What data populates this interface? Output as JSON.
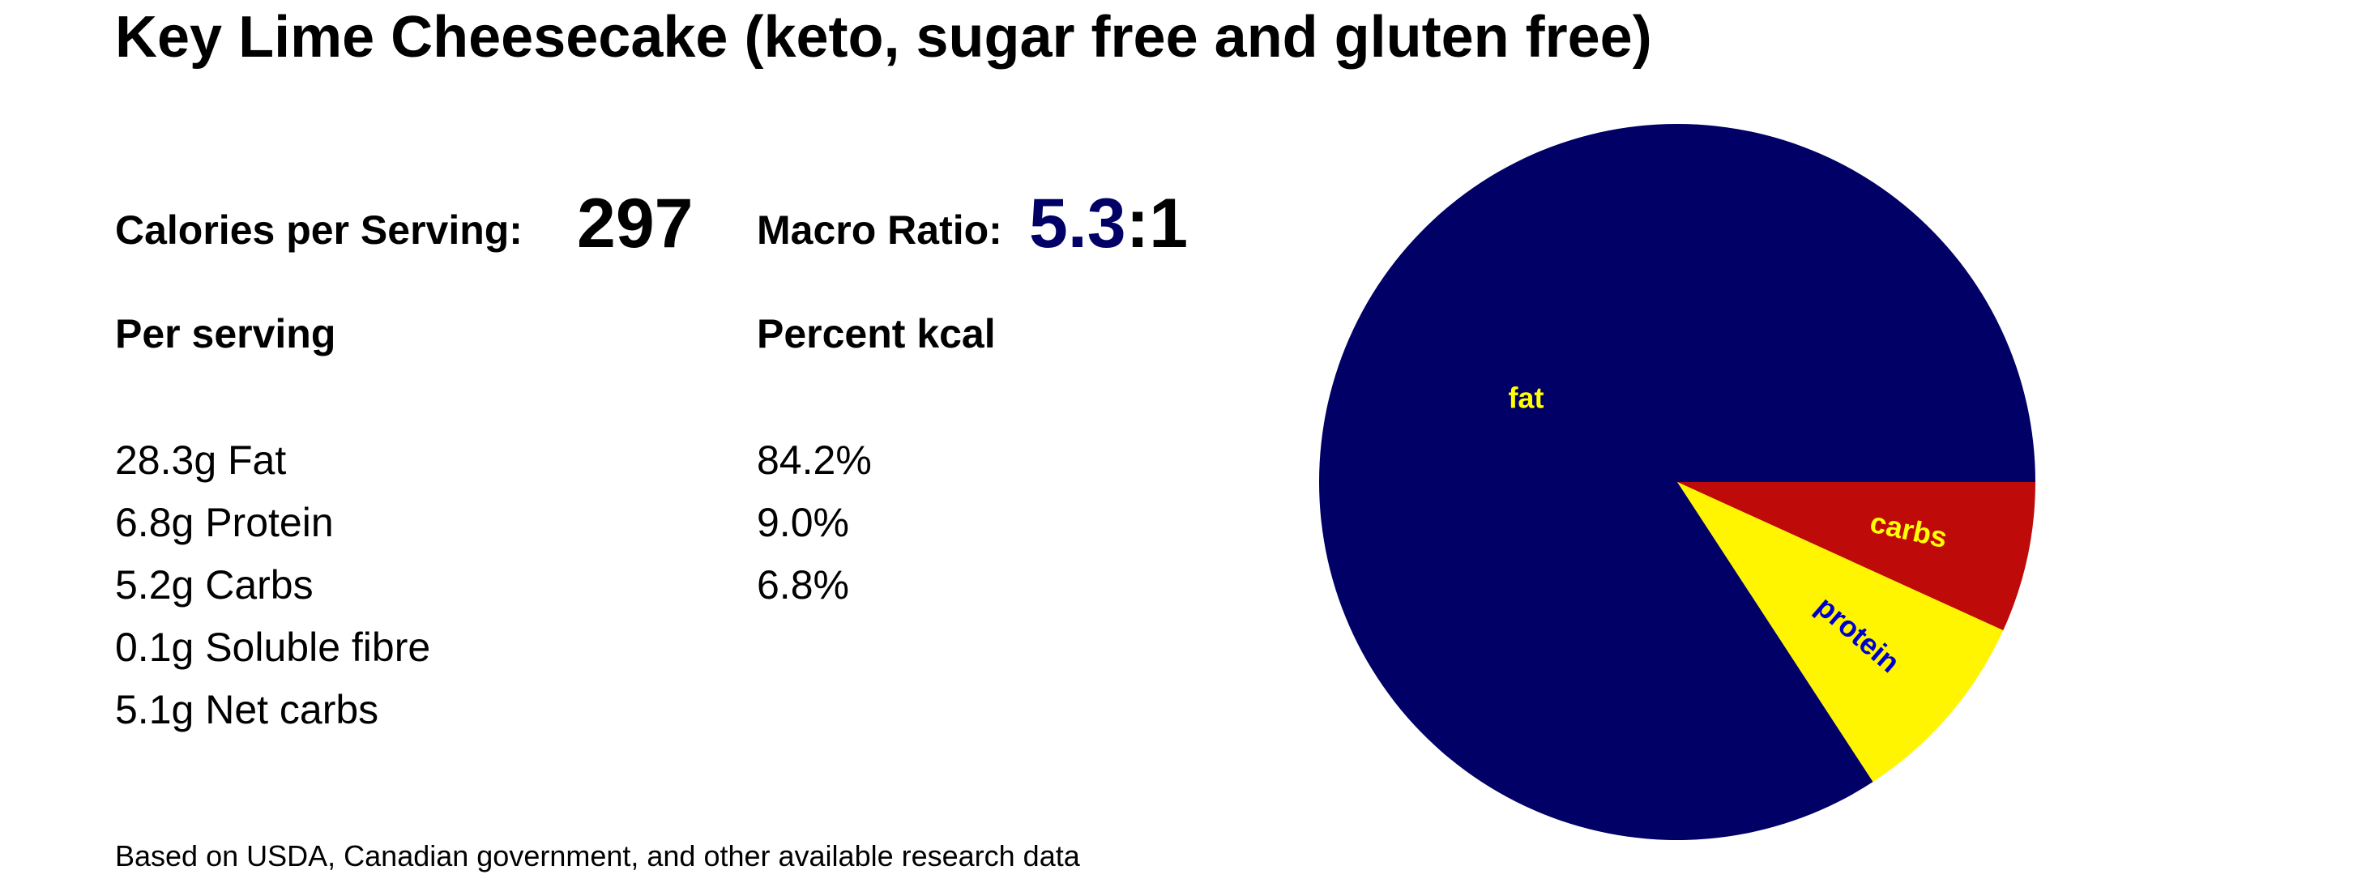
{
  "title": "Key Lime Cheesecake (keto, sugar free and gluten free)",
  "calories": {
    "label": "Calories per Serving:",
    "value": "297"
  },
  "macro_ratio": {
    "label": "Macro Ratio:",
    "value": "5.3",
    "suffix": ":1",
    "value_color": "#000066"
  },
  "per_serving": {
    "heading": "Per serving",
    "rows": [
      "28.3g Fat",
      "6.8g Protein",
      "5.2g Carbs",
      "0.1g Soluble fibre",
      "5.1g Net carbs"
    ]
  },
  "percent_kcal": {
    "heading": "Percent kcal",
    "rows": [
      "84.2%",
      "9.0%",
      "6.8%"
    ]
  },
  "footnote": "Based on USDA, Canadian government, and other available research data",
  "chart_data": {
    "type": "pie",
    "start_angle_deg": 0,
    "direction": "clockwise",
    "slices": [
      {
        "label": "carbs",
        "value": 6.8,
        "color": "#bf0a0a",
        "label_color": "#ffff00"
      },
      {
        "label": "protein",
        "value": 9.0,
        "color": "#fff500",
        "label_color": "#0000cc"
      },
      {
        "label": "fat",
        "value": 84.2,
        "color": "#000066",
        "label_color": "#ffff00"
      }
    ]
  }
}
